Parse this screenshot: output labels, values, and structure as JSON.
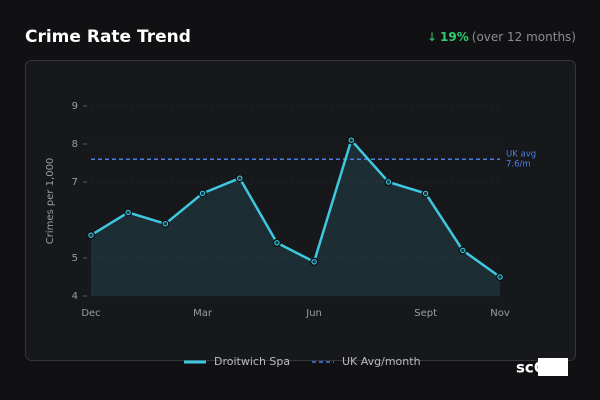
{
  "chart_data": {
    "type": "line",
    "title": "Crime Rate Trend",
    "change": {
      "arrow": "↓",
      "value": 19,
      "value_label": "19%",
      "note": "(over 12 months)"
    },
    "y_label": "Crimes per 1,000",
    "categories": [
      "Dec",
      null,
      null,
      "Mar",
      null,
      null,
      "Jun",
      null,
      null,
      "Sept",
      null,
      "Nov"
    ],
    "series": [
      {
        "name": "Droitwich Spa",
        "color": "#3ec8e0",
        "values": [
          5.6,
          6.2,
          5.9,
          6.7,
          7.1,
          5.4,
          4.9,
          8.1,
          7.0,
          6.7,
          5.2,
          4.5
        ]
      }
    ],
    "reference": {
      "name": "UK Avg/month",
      "label": "UK avg",
      "value": 7.6,
      "value_label": "7.6/m",
      "color": "#4a7fe0"
    },
    "ylim": [
      4,
      9
    ],
    "yticks": [
      4,
      5,
      7,
      8,
      9
    ],
    "grid": true,
    "logo": "scOS"
  }
}
